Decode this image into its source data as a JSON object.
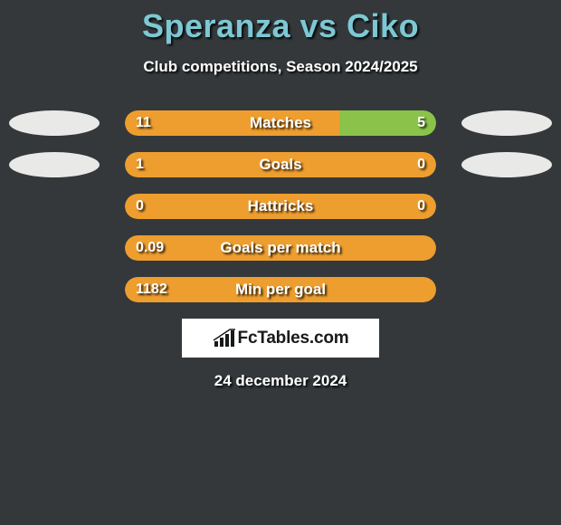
{
  "title": {
    "text": "Speranza vs Ciko",
    "color": "#7cc8d4",
    "fontsize": 36
  },
  "subtitle": {
    "text": "Club competitions, Season 2024/2025",
    "fontsize": 17
  },
  "background_color": "#34383a",
  "text_shadow_color": "#000000",
  "bar": {
    "track_width": 344,
    "track_height": 28,
    "border_radius": 14
  },
  "ovals": {
    "width": 100,
    "height": 28,
    "left_color": "#e9e9e8",
    "right_color": "#e9e9e8"
  },
  "colors": {
    "left": "#ee9e2e",
    "right": "#8bc34a",
    "neutral": "#ee9e2e"
  },
  "rows": [
    {
      "label": "Matches",
      "left_value": "11",
      "right_value": "5",
      "left_num": 11,
      "right_num": 5,
      "show_ovals": true,
      "mode": "split"
    },
    {
      "label": "Goals",
      "left_value": "1",
      "right_value": "0",
      "left_num": 1,
      "right_num": 0,
      "show_ovals": true,
      "mode": "split"
    },
    {
      "label": "Hattricks",
      "left_value": "0",
      "right_value": "0",
      "left_num": 0,
      "right_num": 0,
      "show_ovals": false,
      "mode": "neutral"
    },
    {
      "label": "Goals per match",
      "left_value": "0.09",
      "right_value": "",
      "left_num": 0.09,
      "right_num": 0,
      "show_ovals": false,
      "mode": "full-left"
    },
    {
      "label": "Min per goal",
      "left_value": "1182",
      "right_value": "",
      "left_num": 1182,
      "right_num": 0,
      "show_ovals": false,
      "mode": "full-left"
    }
  ],
  "brand": {
    "text": "FcTables.com",
    "icon_color": "#17191a",
    "box_bg": "#ffffff"
  },
  "date": "24 december 2024"
}
